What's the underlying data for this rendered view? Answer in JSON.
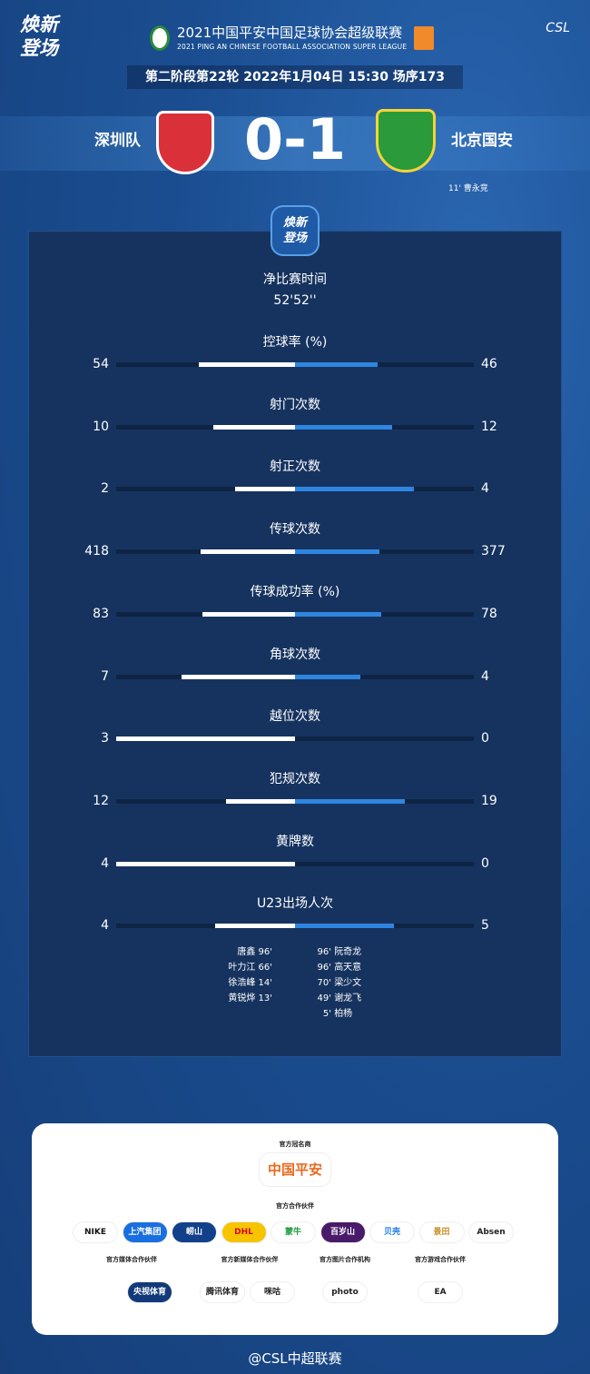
{
  "header": {
    "brand_left": "焕新登场",
    "league_cn": "2021中国平安中国足球协会超级联赛",
    "league_en": "2021 PING AN CHINESE FOOTBALL ASSOCIATION SUPER LEAGUE",
    "csl": "CSL",
    "round_info": "第二阶段第22轮  2022年1月04日 15:30 场序173"
  },
  "match": {
    "home": "深圳队",
    "away": "北京国安",
    "score": "0-1",
    "home_color": "#d9303a",
    "away_color": "#2a9a3a",
    "scorers_away": "11'  曹永竞"
  },
  "panel": {
    "logo": "焕新登场",
    "net_time_label": "净比赛时间",
    "net_time": "52'52''"
  },
  "stats": [
    {
      "label": "控球率 (%)",
      "home": 54,
      "away": 46
    },
    {
      "label": "射门次数",
      "home": 10,
      "away": 12
    },
    {
      "label": "射正次数",
      "home": 2,
      "away": 4
    },
    {
      "label": "传球次数",
      "home": 418,
      "away": 377
    },
    {
      "label": "传球成功率 (%)",
      "home": 83,
      "away": 78
    },
    {
      "label": "角球次数",
      "home": 7,
      "away": 4
    },
    {
      "label": "越位次数",
      "home": 3,
      "away": 0
    },
    {
      "label": "犯规次数",
      "home": 12,
      "away": 19
    },
    {
      "label": "黄牌数",
      "home": 4,
      "away": 0
    },
    {
      "label": "U23出场人次",
      "home": 4,
      "away": 5
    }
  ],
  "u23_home": [
    {
      "name": "唐鑫",
      "min": "96'"
    },
    {
      "name": "叶力江",
      "min": "66'"
    },
    {
      "name": "徐浩峰",
      "min": "14'"
    },
    {
      "name": "黄锐烨",
      "min": "13'"
    }
  ],
  "u23_away": [
    {
      "name": "阮奇龙",
      "min": "96'"
    },
    {
      "name": "高天意",
      "min": "96'"
    },
    {
      "name": "梁少文",
      "min": "70'"
    },
    {
      "name": "谢龙飞",
      "min": "49'"
    },
    {
      "name": "柏杨",
      "min": "5'"
    }
  ],
  "sponsors": {
    "title_sponsor_label": "官方冠名商",
    "title_sponsor": "中国平安",
    "partners_label": "官方合作伙伴",
    "partners": [
      "NIKE",
      "上汽集团",
      "崂山",
      "DHL",
      "蒙牛",
      "百岁山",
      "贝壳",
      "景田",
      "Absen"
    ],
    "media_label": "官方媒体合作伙伴",
    "media": [
      "央视体育"
    ],
    "newmedia_label": "官方新媒体合作伙伴",
    "newmedia": [
      "腾讯体育",
      "咪咕"
    ],
    "photo_label": "官方图片合作机构",
    "photo": [
      "photo"
    ],
    "game_label": "官方游戏合作伙伴",
    "game": [
      "EA"
    ]
  },
  "footer": {
    "weibo": "@CSL中超联赛"
  }
}
